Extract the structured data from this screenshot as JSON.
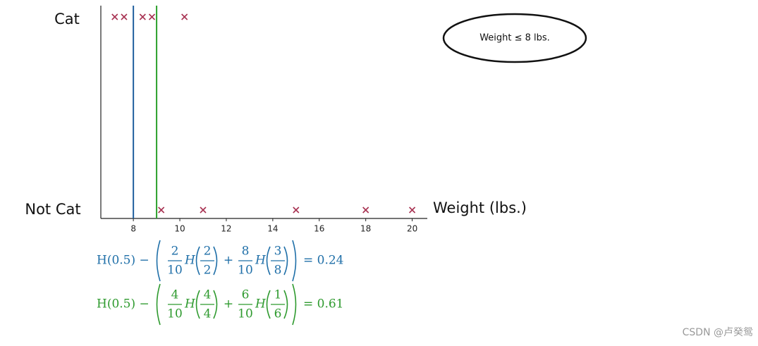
{
  "chart_data": {
    "type": "scatter",
    "xlabel": "Weight (lbs.)",
    "xlim": [
      6.6,
      20.65
    ],
    "xticks": [
      8,
      10,
      12,
      14,
      16,
      18,
      20
    ],
    "marker_color": "#a83252",
    "series": [
      {
        "label": "Cat",
        "x": [
          7.2,
          7.6,
          8.4,
          8.8,
          10.2
        ]
      },
      {
        "label": "Not Cat",
        "x": [
          9.2,
          11.0,
          15.0,
          18.0,
          20.0
        ]
      }
    ],
    "thresholds": [
      {
        "value": 8,
        "color": "#1f5f9e"
      },
      {
        "value": 9,
        "color": "#2ca02c"
      }
    ],
    "annotation": "Weight ≤ 8 lbs.",
    "equations": [
      {
        "color": "#1f6fa8",
        "lead": "H(0.5) −",
        "op": "+",
        "result": "= 0.24",
        "terms": [
          {
            "w": [
              "2",
              "10"
            ],
            "h": "H",
            "p": [
              "2",
              "2"
            ]
          },
          {
            "w": [
              "8",
              "10"
            ],
            "h": "H",
            "p": [
              "3",
              "8"
            ]
          }
        ]
      },
      {
        "color": "#2e9a2e",
        "lead": "H(0.5) −",
        "op": "+",
        "result": "= 0.61",
        "terms": [
          {
            "w": [
              "4",
              "10"
            ],
            "h": "H",
            "p": [
              "4",
              "4"
            ]
          },
          {
            "w": [
              "6",
              "10"
            ],
            "h": "H",
            "p": [
              "1",
              "6"
            ]
          }
        ]
      }
    ]
  },
  "watermark": "CSDN @卢癸鸳"
}
